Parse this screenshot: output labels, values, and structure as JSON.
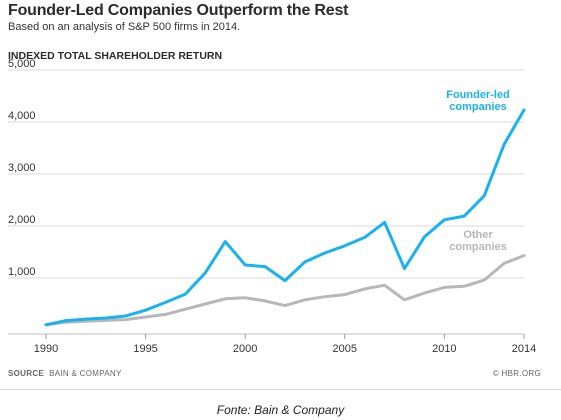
{
  "title": "Founder-Led Companies Outperform the Rest",
  "subtitle": "Based on an analysis of S&P 500 firms in 2014.",
  "source": {
    "label": "SOURCE",
    "text": "BAIN & COMPANY"
  },
  "credit": "© HBR.ORG",
  "caption": "Fonte: Bain & Company",
  "colors": {
    "founder": "#1ab1ef",
    "other": "#b7b7b7",
    "grid": "#d9d9d9",
    "text": "#333333"
  },
  "chart_data": {
    "type": "line",
    "title": "",
    "ylabel": "INDEXED TOTAL SHAREHOLDER RETURN",
    "xlabel": "",
    "ylim": [
      0,
      5000
    ],
    "xlim": [
      1990,
      2014
    ],
    "yticks": [
      1000,
      2000,
      3000,
      4000,
      5000
    ],
    "ytick_labels": [
      "1,000",
      "2,000",
      "3,000",
      "4,000",
      "5,000"
    ],
    "xticks": [
      1990,
      1995,
      2000,
      2005,
      2010,
      2014
    ],
    "xtick_labels": [
      "1990",
      "1995",
      "2000",
      "2005",
      "2010",
      "2014"
    ],
    "grid": true,
    "x": [
      1990,
      1991,
      1992,
      1993,
      1994,
      1995,
      1996,
      1997,
      1998,
      1999,
      2000,
      2001,
      2002,
      2003,
      2004,
      2005,
      2006,
      2007,
      2008,
      2009,
      2010,
      2011,
      2012,
      2013,
      2014
    ],
    "series": [
      {
        "name": "Founder-led companies",
        "label_lines": [
          "Founder-led",
          "companies"
        ],
        "color": "#1ab1ef",
        "values": [
          100,
          180,
          210,
          230,
          270,
          380,
          530,
          690,
          1100,
          1700,
          1250,
          1220,
          950,
          1310,
          1480,
          1620,
          1780,
          2070,
          1180,
          1790,
          2120,
          2190,
          2580,
          3570,
          4230
        ]
      },
      {
        "name": "Other companies",
        "label_lines": [
          "Other",
          "companies"
        ],
        "color": "#b7b7b7",
        "values": [
          100,
          150,
          170,
          185,
          200,
          250,
          300,
          400,
          500,
          600,
          620,
          560,
          470,
          580,
          640,
          680,
          790,
          860,
          580,
          710,
          820,
          840,
          960,
          1280,
          1430
        ]
      }
    ]
  }
}
